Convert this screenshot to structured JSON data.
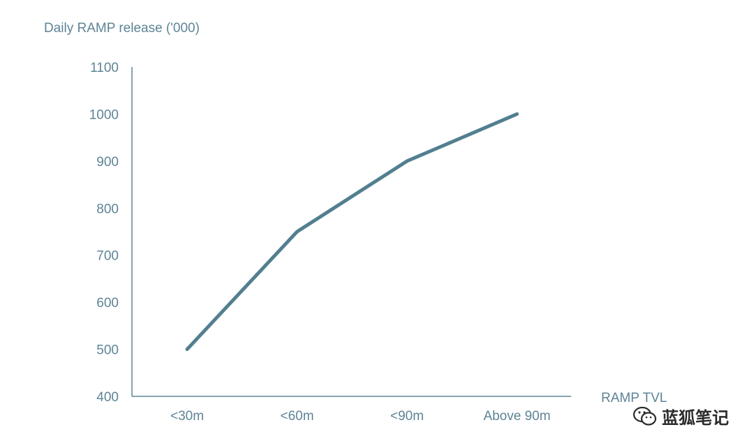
{
  "chart_data": {
    "type": "line",
    "ylabel": "Daily RAMP release ('000)",
    "xlabel": "RAMP TVL",
    "categories": [
      "<30m",
      "<60m",
      "<90m",
      "Above 90m"
    ],
    "series": [
      {
        "values": [
          500,
          750,
          900,
          1000
        ]
      }
    ],
    "ylim": [
      400,
      1100
    ],
    "yticks": [
      "400",
      "500",
      "600",
      "700",
      "800",
      "900",
      "1000",
      "1100"
    ],
    "grid": false,
    "line_color": "#527f90",
    "axis_color": "#5e8496"
  },
  "watermark": {
    "text": "蓝狐笔记",
    "icon": "wechat-icon"
  }
}
